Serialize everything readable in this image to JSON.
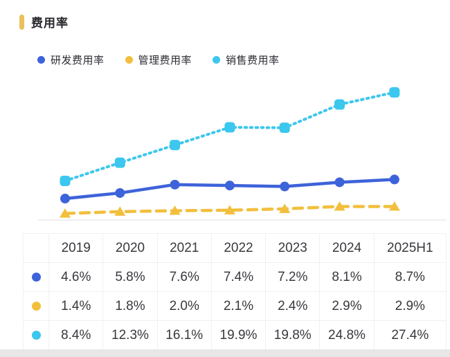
{
  "title": "费用率",
  "accent_color": "#E9C05C",
  "colors": {
    "rd_blue": "#3D63DA",
    "admin_yellow": "#F2BF3D",
    "sales_cyan": "#3CC7EE",
    "baseline_gray": "#EAEAEE",
    "grid_gray": "#F0F0F3",
    "text_dark": "#38383E"
  },
  "legend": [
    {
      "label": "研发费用率",
      "color": "#3D63DA"
    },
    {
      "label": "管理费用率",
      "color": "#F2BF3D"
    },
    {
      "label": "销售费用率",
      "color": "#3CC7EE"
    }
  ],
  "chart_data": {
    "type": "line",
    "categories": [
      "2019",
      "2020",
      "2021",
      "2022",
      "2023",
      "2024",
      "2025H1"
    ],
    "series": [
      {
        "name": "研发费用率",
        "values": [
          4.6,
          5.8,
          7.6,
          7.4,
          7.2,
          8.1,
          8.7
        ],
        "color": "#3D63DA",
        "line_style": "solid",
        "marker": "circle"
      },
      {
        "name": "管理费用率",
        "values": [
          1.4,
          1.8,
          2.0,
          2.1,
          2.4,
          2.9,
          2.9
        ],
        "color": "#F2BF3D",
        "line_style": "dashed",
        "marker": "triangle"
      },
      {
        "name": "销售费用率",
        "values": [
          8.4,
          12.3,
          16.1,
          19.9,
          19.8,
          24.8,
          27.4
        ],
        "color": "#3CC7EE",
        "line_style": "dotted",
        "marker": "square"
      }
    ],
    "title": "费用率",
    "xlabel": "",
    "ylabel": "",
    "ylim": [
      0,
      30
    ],
    "grid": false,
    "legend_position": "top",
    "unit": "%"
  },
  "table": {
    "headers": [
      "",
      "2019",
      "2020",
      "2021",
      "2022",
      "2023",
      "2024",
      "2025H1"
    ],
    "rows": [
      {
        "series": "研发费用率",
        "color": "#3D63DA",
        "values": [
          "4.6%",
          "5.8%",
          "7.6%",
          "7.4%",
          "7.2%",
          "8.1%",
          "8.7%"
        ]
      },
      {
        "series": "管理费用率",
        "color": "#F2BF3D",
        "values": [
          "1.4%",
          "1.8%",
          "2.0%",
          "2.1%",
          "2.4%",
          "2.9%",
          "2.9%"
        ]
      },
      {
        "series": "销售费用率",
        "color": "#3CC7EE",
        "values": [
          "8.4%",
          "12.3%",
          "16.1%",
          "19.9%",
          "19.8%",
          "24.8%",
          "27.4%"
        ]
      }
    ]
  }
}
